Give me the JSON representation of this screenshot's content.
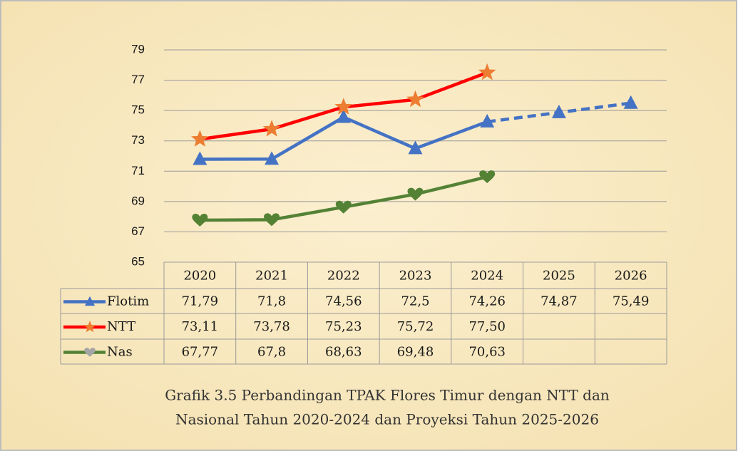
{
  "chart_data": {
    "type": "line",
    "categories": [
      "2020",
      "2021",
      "2022",
      "2023",
      "2024",
      "2025",
      "2026"
    ],
    "series": [
      {
        "name": "Flotim",
        "color": "#4472c4",
        "marker": "triangle",
        "marker_color": "#4472c4",
        "dash_from_index": 4,
        "values": [
          71.79,
          71.8,
          74.56,
          72.5,
          74.26,
          74.87,
          75.49
        ],
        "value_labels": [
          "71,79",
          "71,8",
          "74,56",
          "72,5",
          "74,26",
          "74,87",
          "75,49"
        ]
      },
      {
        "name": "NTT",
        "color": "#ff0000",
        "marker": "star",
        "marker_color": "#ed7d31",
        "values": [
          73.11,
          73.78,
          75.23,
          75.72,
          77.5,
          null,
          null
        ],
        "value_labels": [
          "73,11",
          "73,78",
          "75,23",
          "75,72",
          "77,50",
          null,
          null
        ]
      },
      {
        "name": "Nas",
        "color": "#548235",
        "marker": "heart",
        "marker_color": "#548235",
        "legend_marker_color": "#a5a5a5",
        "values": [
          67.77,
          67.8,
          68.63,
          69.48,
          70.63,
          null,
          null
        ],
        "value_labels": [
          "67,77",
          "67,8",
          "68,63",
          "69,48",
          "70,63",
          null,
          null
        ]
      }
    ],
    "ylim": [
      65,
      79
    ],
    "yticks": [
      65,
      67,
      69,
      71,
      73,
      75,
      77,
      79
    ],
    "grid": true,
    "data_table": true,
    "caption": [
      "Grafik 3.5 Perbandingan TPAK Flores Timur dengan NTT dan",
      "Nasional Tahun 2020-2024 dan Proyeksi Tahun 2025-2026"
    ]
  }
}
